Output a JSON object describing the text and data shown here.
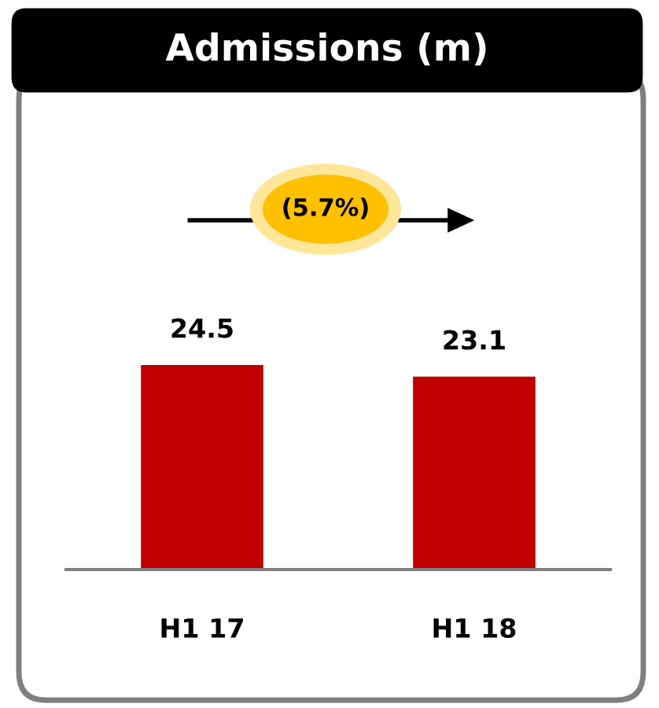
{
  "chart_data": {
    "type": "bar",
    "title": "Admissions (m)",
    "categories": [
      "H1 17",
      "H1 18"
    ],
    "values": [
      24.5,
      23.1
    ],
    "color": "#c00000",
    "tick_labels": "x",
    "data_labels": true,
    "grid": false,
    "legend": false,
    "annotations": [
      "(5.7%)"
    ]
  }
}
